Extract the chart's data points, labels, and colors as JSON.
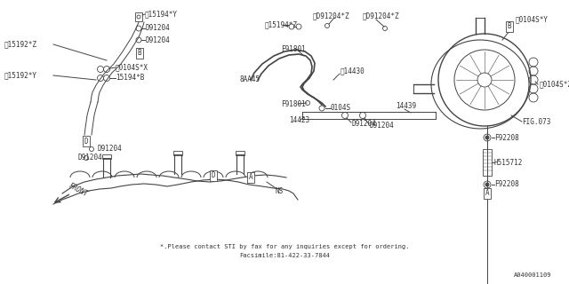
{
  "background_color": "#ffffff",
  "footer_line1": "*.Please contact STI by fax for any inquiries except for ordering.",
  "footer_line2": "Facsimile:81-422-33-7844",
  "doc_number": "A040001109",
  "line_color": "#444444",
  "text_color": "#333333",
  "font_size_label": 5.5,
  "font_size_footer": 5.0,
  "font_size_doc": 5.0,
  "lw_main": 0.7,
  "lw_thin": 0.5
}
